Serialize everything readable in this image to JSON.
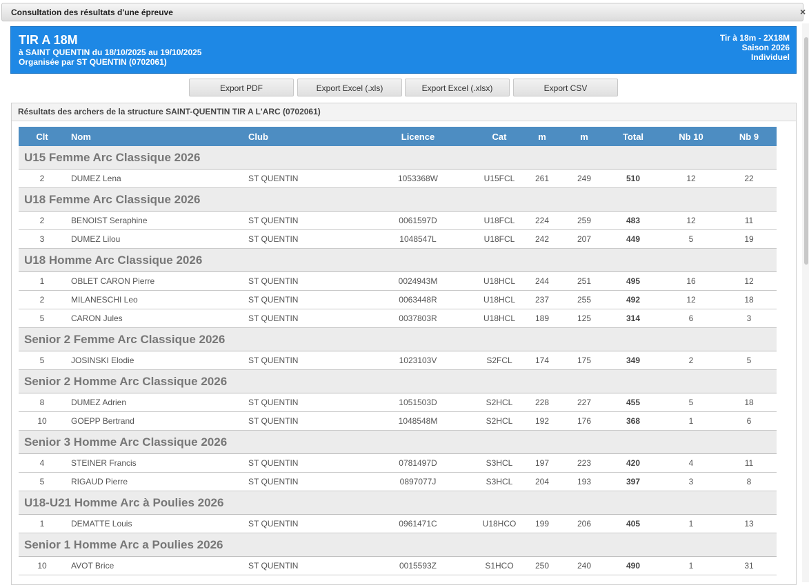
{
  "dialog": {
    "title": "Consultation des résultats d'une épreuve",
    "close_label": "×"
  },
  "event": {
    "title": "TIR A 18M",
    "dates": "à SAINT QUENTIN du 18/10/2025 au 19/10/2025",
    "organizer": "Organisée par ST QUENTIN (0702061)",
    "format": "Tir à 18m - 2X18M",
    "season": "Saison 2026",
    "type": "Individuel"
  },
  "toolbar": {
    "export_pdf": "Export PDF",
    "export_xls": "Export Excel (.xls)",
    "export_xlsx": "Export Excel (.xlsx)",
    "export_csv": "Export CSV"
  },
  "panel": {
    "title": "Résultats des archers de la structure SAINT-QUENTIN TIR A L'ARC (0702061)"
  },
  "table": {
    "columns": [
      "Clt",
      "Nom",
      "Club",
      "Licence",
      "Cat",
      "m",
      "m",
      "Total",
      "Nb 10",
      "Nb 9"
    ],
    "groups": [
      {
        "name": "U15 Femme Arc Classique 2026",
        "rows": [
          [
            "2",
            "DUMEZ Lena",
            "ST QUENTIN",
            "1053368W",
            "U15FCL",
            "261",
            "249",
            "510",
            "12",
            "22"
          ]
        ]
      },
      {
        "name": "U18 Femme Arc Classique 2026",
        "rows": [
          [
            "2",
            "BENOIST Seraphine",
            "ST QUENTIN",
            "0061597D",
            "U18FCL",
            "224",
            "259",
            "483",
            "12",
            "11"
          ],
          [
            "3",
            "DUMEZ Lilou",
            "ST QUENTIN",
            "1048547L",
            "U18FCL",
            "242",
            "207",
            "449",
            "5",
            "19"
          ]
        ]
      },
      {
        "name": "U18 Homme Arc Classique 2026",
        "rows": [
          [
            "1",
            "OBLET CARON Pierre",
            "ST QUENTIN",
            "0024943M",
            "U18HCL",
            "244",
            "251",
            "495",
            "16",
            "12"
          ],
          [
            "2",
            "MILANESCHI Leo",
            "ST QUENTIN",
            "0063448R",
            "U18HCL",
            "237",
            "255",
            "492",
            "12",
            "18"
          ],
          [
            "5",
            "CARON Jules",
            "ST QUENTIN",
            "0037803R",
            "U18HCL",
            "189",
            "125",
            "314",
            "6",
            "3"
          ]
        ]
      },
      {
        "name": "Senior 2 Femme Arc Classique 2026",
        "rows": [
          [
            "5",
            "JOSINSKI Elodie",
            "ST QUENTIN",
            "1023103V",
            "S2FCL",
            "174",
            "175",
            "349",
            "2",
            "5"
          ]
        ]
      },
      {
        "name": "Senior 2 Homme Arc Classique 2026",
        "rows": [
          [
            "8",
            "DUMEZ Adrien",
            "ST QUENTIN",
            "1051503D",
            "S2HCL",
            "228",
            "227",
            "455",
            "5",
            "18"
          ],
          [
            "10",
            "GOEPP Bertrand",
            "ST QUENTIN",
            "1048548M",
            "S2HCL",
            "192",
            "176",
            "368",
            "1",
            "6"
          ]
        ]
      },
      {
        "name": "Senior 3 Homme Arc Classique 2026",
        "rows": [
          [
            "4",
            "STEINER Francis",
            "ST QUENTIN",
            "0781497D",
            "S3HCL",
            "197",
            "223",
            "420",
            "4",
            "11"
          ],
          [
            "5",
            "RIGAUD Pierre",
            "ST QUENTIN",
            "0897077J",
            "S3HCL",
            "204",
            "193",
            "397",
            "3",
            "8"
          ]
        ]
      },
      {
        "name": "U18-U21 Homme Arc à Poulies 2026",
        "rows": [
          [
            "1",
            "DEMATTE Louis",
            "ST QUENTIN",
            "0961471C",
            "U18HCO",
            "199",
            "206",
            "405",
            "1",
            "13"
          ]
        ]
      },
      {
        "name": "Senior 1 Homme Arc a Poulies 2026",
        "rows": [
          [
            "10",
            "AVOT Brice",
            "ST QUENTIN",
            "0015593Z",
            "S1HCO",
            "250",
            "240",
            "490",
            "1",
            "31"
          ]
        ]
      }
    ]
  },
  "colors": {
    "header_band": "#1e88e5",
    "table_header": "#4d8dc2",
    "group_row": "#ececec"
  }
}
